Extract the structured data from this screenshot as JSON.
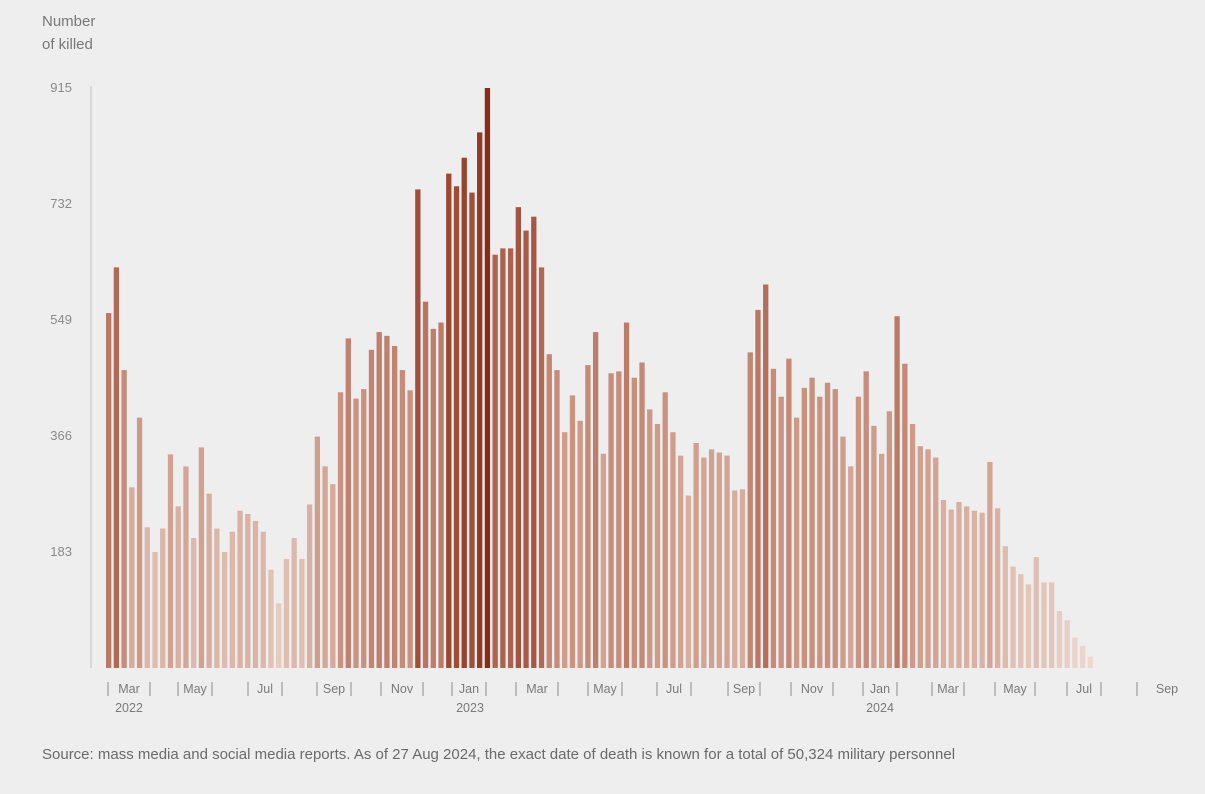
{
  "chart_data": {
    "type": "bar",
    "ylabel": "Number\nof killed",
    "yticks": [
      183,
      366,
      549,
      732,
      915
    ],
    "ylim": [
      0,
      915
    ],
    "values": [
      560,
      632,
      470,
      285,
      395,
      222,
      183,
      220,
      337,
      255,
      318,
      205,
      348,
      275,
      220,
      183,
      215,
      248,
      243,
      232,
      215,
      155,
      102,
      172,
      205,
      172,
      258,
      365,
      318,
      290,
      435,
      520,
      425,
      440,
      502,
      530,
      524,
      508,
      470,
      438,
      755,
      578,
      535,
      545,
      780,
      760,
      805,
      750,
      845,
      915,
      652,
      662,
      662,
      727,
      690,
      712,
      632,
      495,
      470,
      372,
      430,
      390,
      478,
      530,
      338,
      465,
      468,
      545,
      458,
      482,
      408,
      385,
      435,
      372,
      335,
      272,
      355,
      332,
      345,
      340,
      335,
      280,
      282,
      498,
      565,
      605,
      472,
      428,
      488,
      395,
      442,
      458,
      428,
      450,
      440,
      365,
      318,
      428,
      468,
      382,
      338,
      405,
      555,
      480,
      385,
      350,
      345,
      332,
      265,
      250,
      262,
      255,
      248,
      245,
      325,
      252,
      192,
      160,
      148,
      132,
      175,
      135,
      135,
      90,
      75,
      48,
      35,
      18
    ],
    "month_labels": [
      "Mar",
      "May",
      "Jul",
      "Sep",
      "Nov",
      "Jan",
      "Mar",
      "May",
      "Jul",
      "Sep",
      "Nov",
      "Jan",
      "Mar",
      "May",
      "Jul",
      "Sep"
    ],
    "year_labels": [
      "2022",
      "2023",
      "2024"
    ],
    "colors": {
      "light": "#eddcd3",
      "mid": "#c88f7c",
      "dark": "#8a2b15",
      "axis": "#c4c4c4"
    }
  },
  "source": "Source: mass media and social media reports. As of 27 Aug 2024, the exact date of death is known for a total of 50,324 military personnel"
}
